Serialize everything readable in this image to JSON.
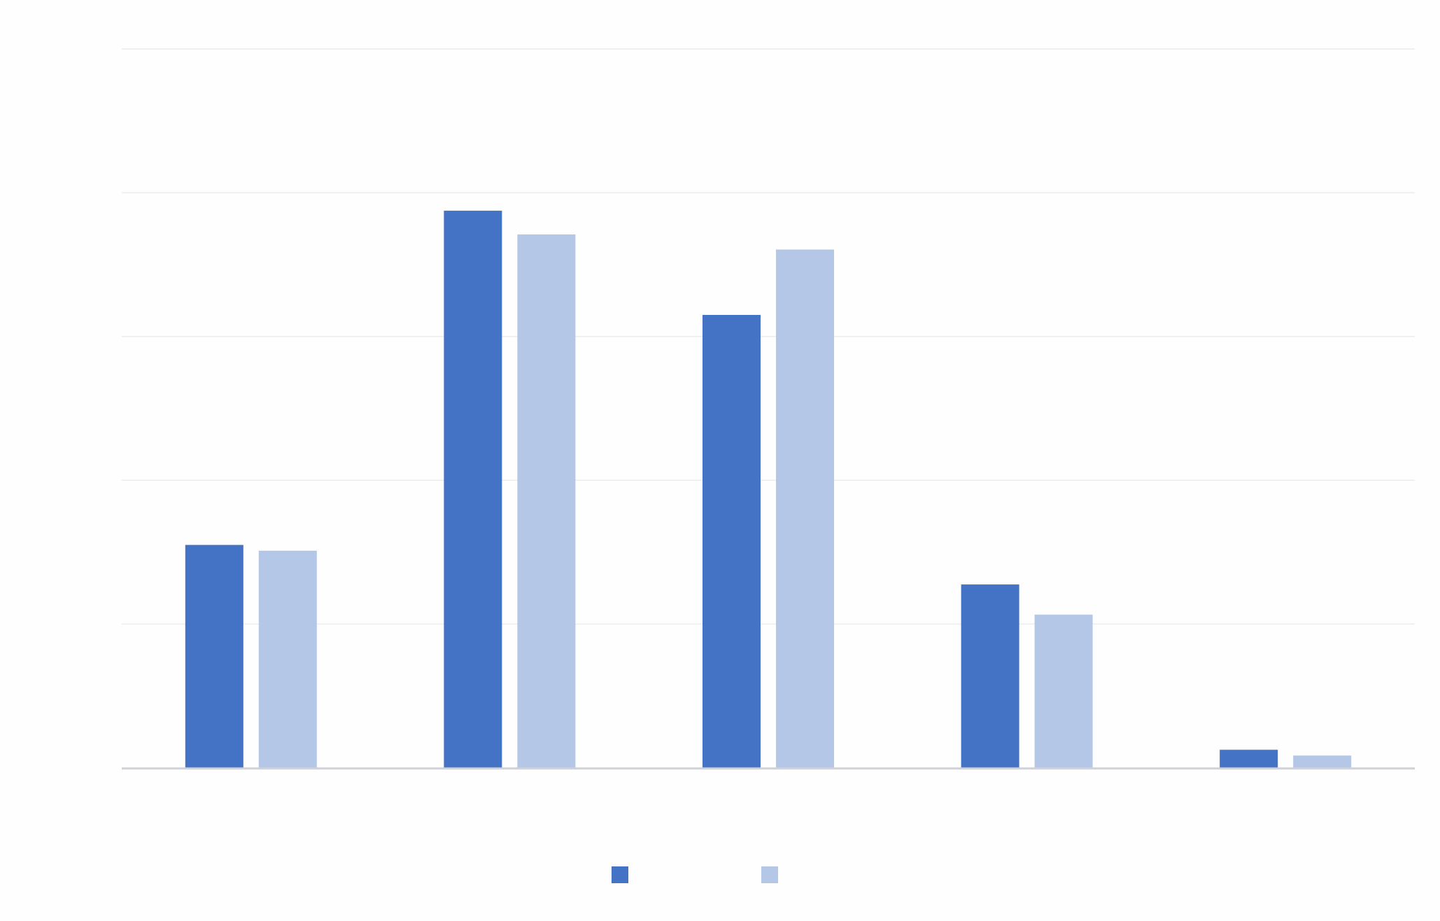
{
  "chart_data": {
    "type": "bar",
    "title": "",
    "xlabel": "",
    "ylabel": "",
    "categories": [
      "",
      "",
      "",
      "",
      ""
    ],
    "series": [
      {
        "values": [
          31,
          77.5,
          63,
          25.5,
          2.5
        ],
        "color": "#4472C4"
      },
      {
        "values": [
          30.2,
          74.2,
          72.1,
          21.3,
          1.7
        ],
        "color": "#B4C7E7"
      }
    ],
    "ylim": [
      0,
      100
    ],
    "gridlines": true,
    "legend": "bottom-center"
  }
}
